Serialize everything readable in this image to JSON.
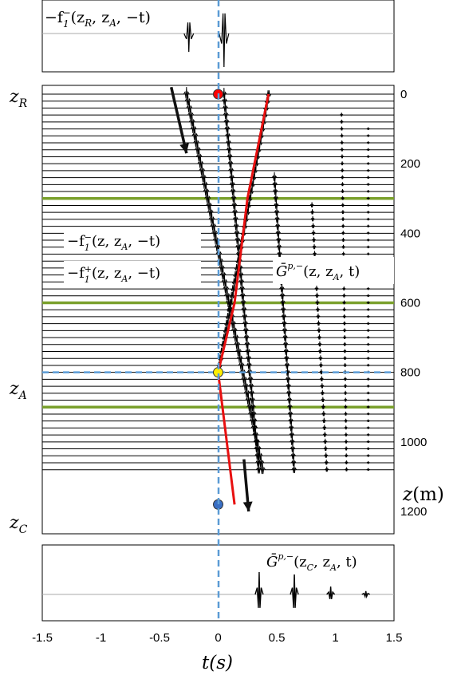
{
  "chart_data": [
    {
      "type": "line",
      "panel": "top",
      "annotation": {
        "label": "−f",
        "sub": "1",
        "sup": "−",
        "args": "(z",
        "argsub": "R",
        "args2": ", z",
        "argsub2": "A",
        "args3": ", −t)"
      },
      "xlim": [
        -1.5,
        1.5
      ],
      "wavelets": [
        {
          "t": -0.25,
          "amp": 0.55,
          "polarity": -1
        },
        {
          "t": 0.05,
          "amp": 1.0,
          "polarity": -1
        }
      ]
    },
    {
      "type": "line",
      "panel": "main",
      "title": "",
      "xlim": [
        -1.5,
        1.5
      ],
      "ylim": [
        0,
        1200
      ],
      "yticks": [
        "0",
        "200",
        "400",
        "600",
        "800",
        "1000",
        "1200"
      ],
      "ylabel_main": "z",
      "ylabel_unit": "(m)",
      "depth_labels": [
        {
          "name": "z",
          "sub": "R",
          "z": 0
        },
        {
          "name": "z",
          "sub": "A",
          "z": 800
        },
        {
          "name": "z",
          "sub": "C",
          "z": 1180
        }
      ],
      "interfaces_z": [
        300,
        600,
        900
      ],
      "focal_depth": 800,
      "trace_count": 55,
      "trace_spacing_m": 20,
      "points": [
        {
          "t": 0.0,
          "z": 0,
          "color": "#ff0000"
        },
        {
          "t": 0.0,
          "z": 800,
          "color": "#ffee00"
        },
        {
          "t": 0.0,
          "z": 1180,
          "color": "#3a6fc4"
        }
      ],
      "red_path": [
        {
          "t": 0.43,
          "z": 0
        },
        {
          "t": 0.25,
          "z": 300
        },
        {
          "t": 0.14,
          "z": 600
        },
        {
          "t": 0.0,
          "z": 800
        },
        {
          "t": 0.14,
          "z": 1180
        }
      ],
      "arrows": [
        {
          "from": {
            "t": -0.4,
            "z": -20
          },
          "to": {
            "t": -0.27,
            "z": 170
          }
        },
        {
          "from": {
            "t": 0.22,
            "z": 1050
          },
          "to": {
            "t": 0.26,
            "z": 1200
          }
        }
      ],
      "legend": [
        {
          "label": "−f",
          "sub": "1",
          "sup": "−",
          "args": "(z, z",
          "argsub": "A",
          "args2": ", −t)"
        },
        {
          "label": "−f",
          "sub": "1",
          "sup": "+",
          "args": "(z, z",
          "argsub": "A",
          "args2": ", −t)"
        },
        {
          "label": "Ḡ",
          "sup": "p,−",
          "args": "(z, z",
          "argsub": "A",
          "args2": ", t)"
        }
      ]
    },
    {
      "type": "line",
      "panel": "bottom",
      "annotation": {
        "label": "Ḡ",
        "sup": "p,−",
        "args": "(z",
        "argsub": "C",
        "args2": ", z",
        "argsub2": "A",
        "args3": ", t)"
      },
      "xlim": [
        -1.5,
        1.5
      ],
      "xticks": [
        "-1.5",
        "-1",
        "-0.5",
        "0",
        "0.5",
        "1",
        "1.5"
      ],
      "xlabel": "t(s)",
      "wavelets": [
        {
          "t": 0.35,
          "amp": 1.0
        },
        {
          "t": 0.65,
          "amp": 1.0
        },
        {
          "t": 0.96,
          "amp": 0.35
        },
        {
          "t": 1.26,
          "amp": 0.15
        }
      ]
    }
  ]
}
